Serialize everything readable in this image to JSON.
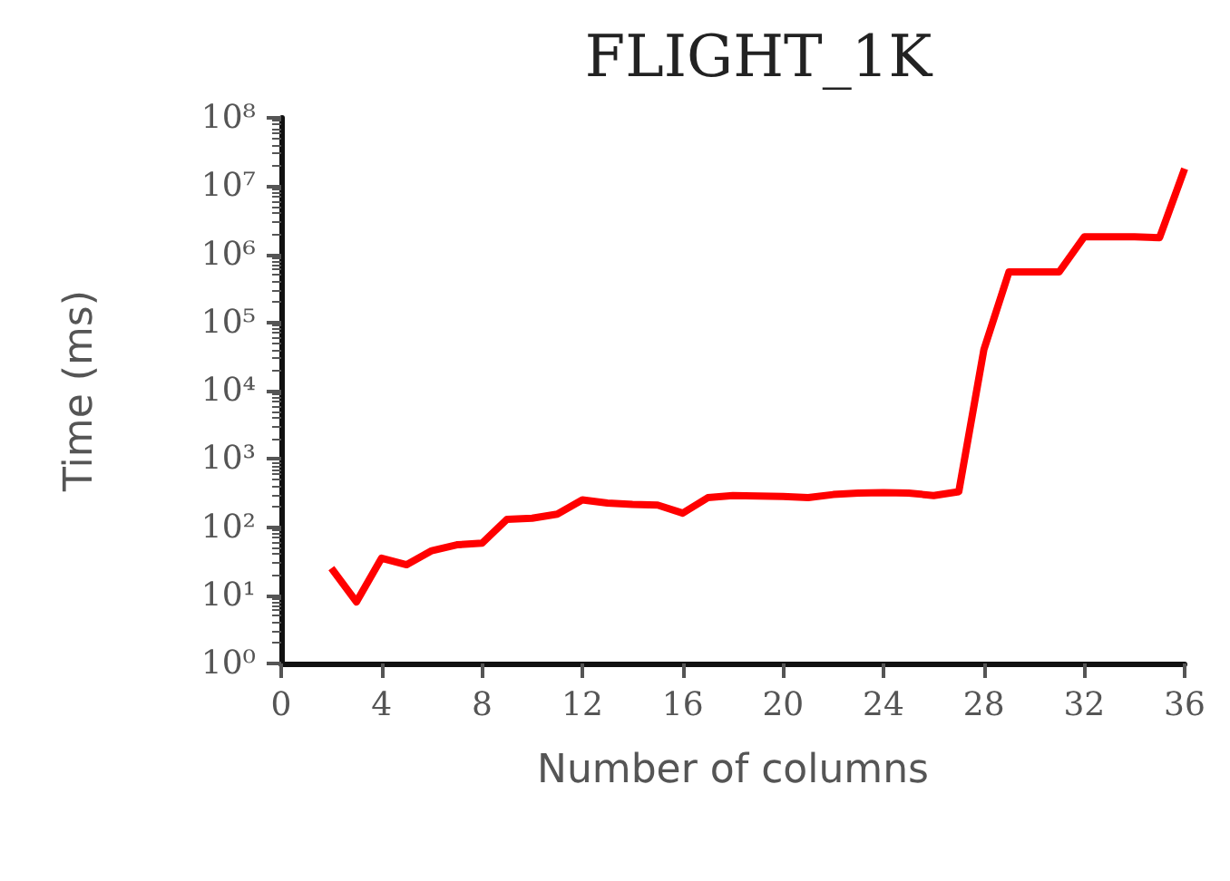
{
  "chart_data": {
    "type": "line",
    "title": "FLIGHT_1K",
    "xlabel": "Number of columns",
    "ylabel": "Time (ms)",
    "log": "y",
    "grid": false,
    "marker": "none",
    "line_style": "solid",
    "x": [
      2,
      3,
      4,
      5,
      6,
      7,
      8,
      9,
      10,
      11,
      12,
      13,
      14,
      15,
      16,
      17,
      18,
      19,
      20,
      21,
      22,
      23,
      24,
      25,
      26,
      27,
      28,
      29,
      30,
      31,
      32,
      33,
      34,
      35,
      36
    ],
    "series": [
      {
        "color": "#ff0000",
        "values": [
          25,
          8,
          35,
          28,
          45,
          55,
          58,
          130,
          135,
          155,
          250,
          225,
          215,
          210,
          160,
          270,
          290,
          285,
          280,
          270,
          300,
          315,
          320,
          315,
          290,
          330,
          40000,
          550000,
          550000,
          550000,
          1800000,
          1800000,
          1800000,
          1750000,
          18000000
        ]
      }
    ],
    "xlim": [
      0,
      36
    ],
    "xticks": [
      0,
      4,
      8,
      12,
      16,
      20,
      24,
      28,
      32,
      36
    ],
    "ylim": [
      1,
      100000000
    ],
    "yticks": [
      {
        "value": 1,
        "label": "10⁰"
      },
      {
        "value": 10,
        "label": "10¹"
      },
      {
        "value": 100,
        "label": "10²"
      },
      {
        "value": 1000,
        "label": "10³"
      },
      {
        "value": 10000,
        "label": "10⁴"
      },
      {
        "value": 100000,
        "label": "10⁵"
      },
      {
        "value": 1000000,
        "label": "10⁶"
      },
      {
        "value": 10000000,
        "label": "10⁷"
      },
      {
        "value": 100000000,
        "label": "10⁸"
      }
    ]
  }
}
